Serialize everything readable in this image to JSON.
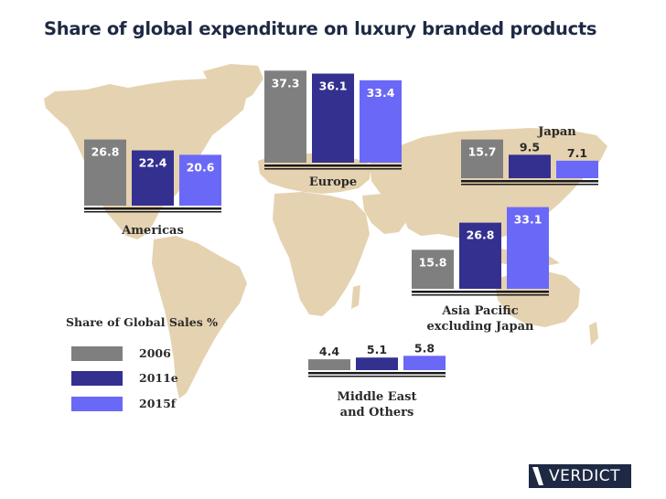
{
  "title": "Share of global expenditure on luxury branded products",
  "colors": {
    "y2006": "#7f7f7f",
    "y2011e": "#343090",
    "y2015f": "#6a68f6",
    "map": "#e5d2b0",
    "text": "#2a2a2a"
  },
  "legend": {
    "title": "Share of Global Sales %",
    "items": [
      {
        "label": "2006",
        "color": "#7f7f7f"
      },
      {
        "label": "2011e",
        "color": "#343090"
      },
      {
        "label": "2015f",
        "color": "#6a68f6"
      }
    ]
  },
  "logo": {
    "text": "VERDICT"
  },
  "chart_data": {
    "type": "bar",
    "title": "Share of global expenditure on luxury branded products",
    "series_names": [
      "2006",
      "2011e",
      "2015f"
    ],
    "groups": [
      {
        "region": "Americas",
        "values": [
          26.8,
          22.4,
          20.6
        ]
      },
      {
        "region": "Europe",
        "values": [
          37.3,
          36.1,
          33.4
        ]
      },
      {
        "region": "Japan",
        "values": [
          15.7,
          9.5,
          7.1
        ]
      },
      {
        "region": "Asia Pacific excluding Japan",
        "values": [
          15.8,
          26.8,
          33.1
        ]
      },
      {
        "region": "Middle East and Others",
        "values": [
          4.4,
          5.1,
          5.8
        ]
      }
    ],
    "legend_position": "bottom-left",
    "grid": false
  }
}
